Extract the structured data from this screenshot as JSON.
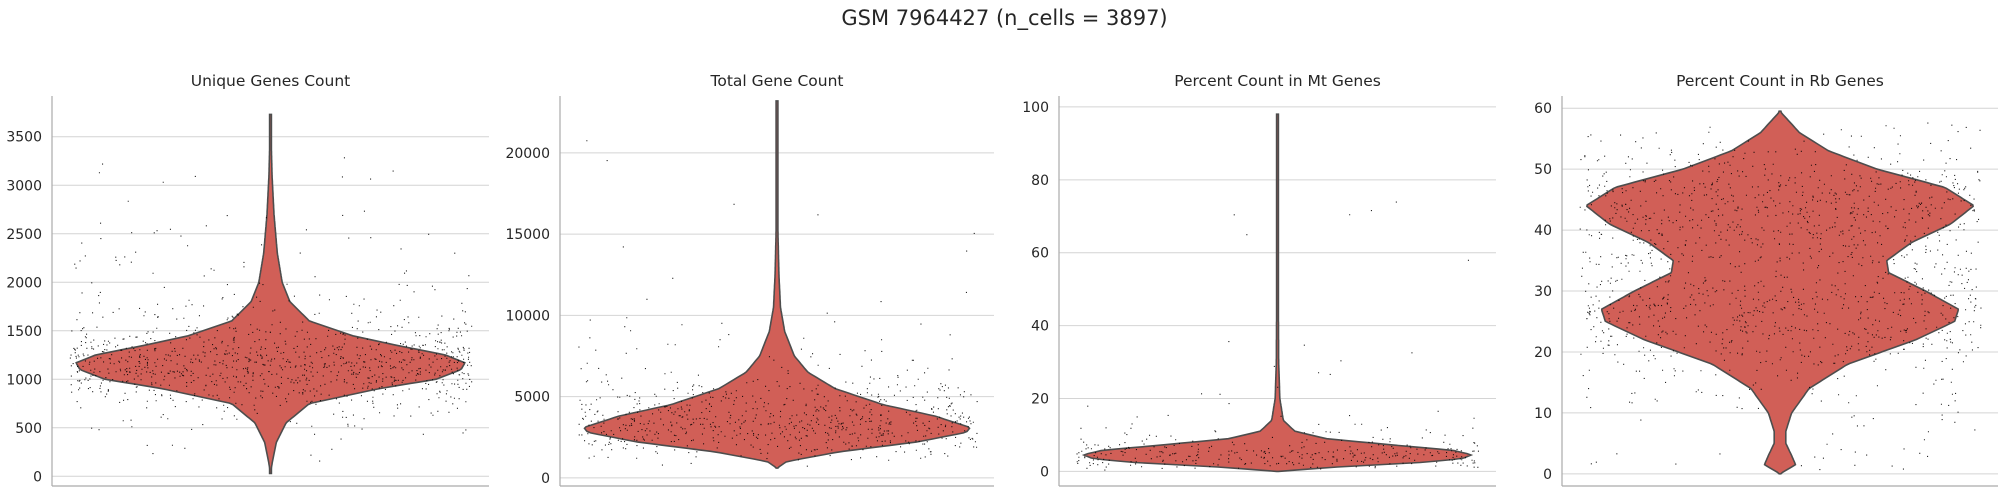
{
  "figure": {
    "suptitle": "GSM 7964427 (n_cells = 3897)"
  },
  "colors": {
    "violin_fill": "#d15f57",
    "violin_edge": "#4d4d4d",
    "points": "#000000",
    "grid": "#d4d4d4",
    "axis": "#aaaaaa"
  },
  "chart_data": [
    {
      "type": "violin",
      "title": "Unique Genes Count",
      "xlabel": "",
      "ylabel": "",
      "ylim": [
        -100,
        3920
      ],
      "yticks": [
        0,
        500,
        1000,
        1500,
        2000,
        2500,
        3000,
        3500
      ],
      "grid": "horizontal",
      "distribution": {
        "min": 30,
        "max": 3730,
        "median": 1170,
        "q1": 960,
        "q3": 1440
      },
      "profile": [
        [
          30,
          0.0
        ],
        [
          150,
          0.01
        ],
        [
          350,
          0.03
        ],
        [
          550,
          0.08
        ],
        [
          750,
          0.2
        ],
        [
          900,
          0.55
        ],
        [
          1000,
          0.85
        ],
        [
          1100,
          0.98
        ],
        [
          1170,
          1.0
        ],
        [
          1250,
          0.9
        ],
        [
          1350,
          0.65
        ],
        [
          1450,
          0.42
        ],
        [
          1600,
          0.2
        ],
        [
          1800,
          0.1
        ],
        [
          2000,
          0.06
        ],
        [
          2300,
          0.035
        ],
        [
          2700,
          0.018
        ],
        [
          3100,
          0.008
        ],
        [
          3500,
          0.003
        ],
        [
          3730,
          0.0
        ]
      ]
    },
    {
      "type": "violin",
      "title": "Total Gene Count",
      "xlabel": "",
      "ylabel": "",
      "ylim": [
        -500,
        23500
      ],
      "yticks": [
        0,
        5000,
        10000,
        15000,
        20000
      ],
      "grid": "horizontal",
      "distribution": {
        "min": 600,
        "max": 23200,
        "median": 3100,
        "q1": 2400,
        "q3": 4200
      },
      "profile": [
        [
          600,
          0.0
        ],
        [
          1000,
          0.05
        ],
        [
          1600,
          0.32
        ],
        [
          2200,
          0.72
        ],
        [
          2800,
          0.98
        ],
        [
          3100,
          1.0
        ],
        [
          3800,
          0.82
        ],
        [
          4500,
          0.55
        ],
        [
          5500,
          0.3
        ],
        [
          6500,
          0.16
        ],
        [
          7500,
          0.09
        ],
        [
          9000,
          0.04
        ],
        [
          10500,
          0.018
        ],
        [
          12500,
          0.01
        ],
        [
          15000,
          0.005
        ],
        [
          18000,
          0.003
        ],
        [
          21000,
          0.002
        ],
        [
          23200,
          0.0
        ]
      ]
    },
    {
      "type": "violin",
      "title": "Percent Count in Mt Genes",
      "xlabel": "",
      "ylabel": "",
      "ylim": [
        -4,
        103
      ],
      "yticks": [
        0,
        20,
        40,
        60,
        80,
        100
      ],
      "grid": "horizontal",
      "distribution": {
        "min": 0,
        "max": 98,
        "median": 4.6,
        "q1": 3.5,
        "q3": 5.9
      },
      "profile": [
        [
          0,
          0.0
        ],
        [
          1.2,
          0.3
        ],
        [
          2.5,
          0.75
        ],
        [
          3.5,
          0.95
        ],
        [
          4.6,
          1.0
        ],
        [
          5.8,
          0.9
        ],
        [
          7.2,
          0.6
        ],
        [
          9,
          0.25
        ],
        [
          11,
          0.09
        ],
        [
          14,
          0.03
        ],
        [
          20,
          0.012
        ],
        [
          30,
          0.006
        ],
        [
          50,
          0.004
        ],
        [
          75,
          0.003
        ],
        [
          98,
          0.0
        ]
      ]
    },
    {
      "type": "violin",
      "title": "Percent Count in Rb Genes",
      "xlabel": "",
      "ylabel": "",
      "ylim": [
        -2,
        62
      ],
      "yticks": [
        0,
        10,
        20,
        30,
        40,
        50,
        60
      ],
      "grid": "horizontal",
      "distribution": {
        "min": 0,
        "max": 59.5,
        "median": 33.5,
        "q1": 26,
        "q3": 44
      },
      "profile": [
        [
          0,
          0.0
        ],
        [
          1.5,
          0.08
        ],
        [
          3,
          0.06
        ],
        [
          5,
          0.03
        ],
        [
          7,
          0.03
        ],
        [
          10,
          0.06
        ],
        [
          14,
          0.15
        ],
        [
          18,
          0.35
        ],
        [
          22,
          0.7
        ],
        [
          25,
          0.9
        ],
        [
          27,
          0.92
        ],
        [
          30,
          0.75
        ],
        [
          33,
          0.56
        ],
        [
          35,
          0.55
        ],
        [
          38,
          0.68
        ],
        [
          41,
          0.88
        ],
        [
          44,
          1.0
        ],
        [
          47,
          0.85
        ],
        [
          50,
          0.5
        ],
        [
          53,
          0.25
        ],
        [
          56,
          0.1
        ],
        [
          59.5,
          0.0
        ]
      ]
    }
  ]
}
